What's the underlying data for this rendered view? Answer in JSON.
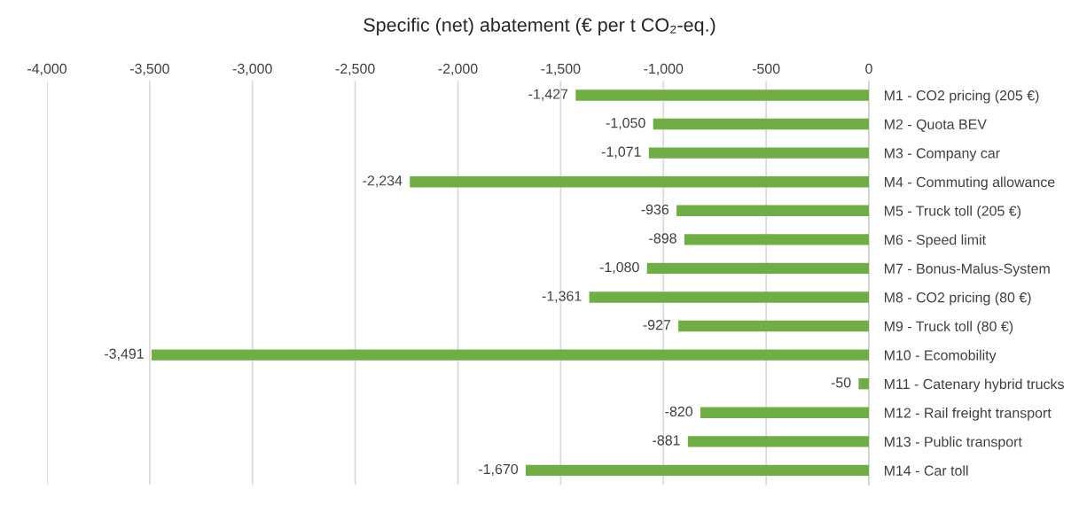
{
  "chart_data": {
    "type": "bar",
    "orientation": "horizontal",
    "title": "Specific (net) abatement (€ per t CO₂-eq.)",
    "categories": [
      "M1 - CO2 pricing (205 €)",
      "M2 - Quota BEV",
      "M3 - Company car",
      "M4 - Commuting allowance",
      "M5 - Truck toll (205 €)",
      "M6 - Speed limit",
      "M7 - Bonus-Malus-System",
      "M8 - CO2 pricing (80 €)",
      "M9 - Truck toll (80 €)",
      "M10 - Ecomobility",
      "M11 - Catenary hybrid trucks",
      "M12 - Rail freight transport",
      "M13 - Public transport",
      "M14 - Car toll"
    ],
    "values": [
      -1427,
      -1050,
      -1071,
      -2234,
      -936,
      -898,
      -1080,
      -1361,
      -927,
      -3491,
      -50,
      -820,
      -881,
      -1670
    ],
    "value_labels": [
      "-1,427",
      "-1,050",
      "-1,071",
      "-2,234",
      "-936",
      "-898",
      "-1,080",
      "-1,361",
      "-927",
      "-3,491",
      "-50",
      "-820",
      "-881",
      "-1,670"
    ],
    "color": "#70ad47",
    "xlim": [
      -4000,
      0
    ],
    "xticks": [
      {
        "value": -4000,
        "label": "-4,000"
      },
      {
        "value": -3500,
        "label": "-3,500"
      },
      {
        "value": -3000,
        "label": "-3,000"
      },
      {
        "value": -2500,
        "label": "-2,500"
      },
      {
        "value": -2000,
        "label": "-2,000"
      },
      {
        "value": -1500,
        "label": "-1,500"
      },
      {
        "value": -1000,
        "label": "-1,000"
      },
      {
        "value": -500,
        "label": "-500"
      },
      0
    ],
    "grid": "x"
  }
}
